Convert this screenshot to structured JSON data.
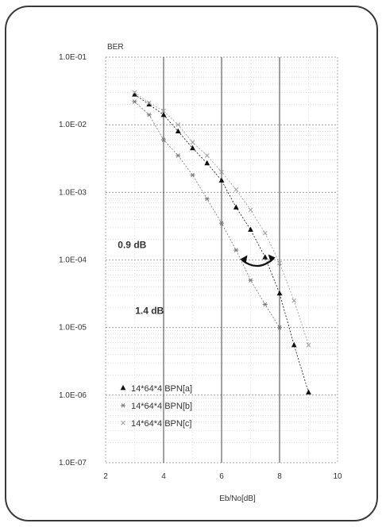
{
  "chart_data": {
    "type": "scatter",
    "ylabel": "BER",
    "xlabel": "Eb/No[dB]",
    "x_ticks": [
      2,
      4,
      6,
      8,
      10
    ],
    "x_tick_labels": [
      "2",
      "4",
      "6",
      "8",
      "10"
    ],
    "xlim": [
      2,
      10
    ],
    "y_scale": "log",
    "ylim": [
      1e-07,
      0.1
    ],
    "y_ticks": [
      0.1,
      0.01,
      0.001,
      0.0001,
      1e-05,
      1e-06,
      1e-07
    ],
    "y_tick_labels": [
      "1.0E-01",
      "1.0E-02",
      "1.0E-03",
      "1.0E-04",
      "1.0E-05",
      "1.0E-06",
      "1.0E-07"
    ],
    "grid": true,
    "legend_position": "lower-left",
    "series": [
      {
        "name": "14*64*4 BPN[a]",
        "marker": "triangle",
        "color": "#111111",
        "x": [
          3.0,
          3.5,
          4.0,
          4.5,
          5.0,
          5.5,
          6.0,
          6.5,
          7.0,
          7.5,
          8.0,
          8.5,
          9.0
        ],
        "y": [
          0.028,
          0.02,
          0.014,
          0.008,
          0.0045,
          0.0027,
          0.0015,
          0.0006,
          0.00028,
          0.00011,
          3.2e-05,
          5.5e-06,
          1.1e-06
        ]
      },
      {
        "name": "14*64*4 BPN[b]",
        "marker": "asterisk",
        "color": "#777777",
        "x": [
          3.0,
          3.5,
          4.0,
          4.5,
          5.0,
          5.5,
          6.0,
          6.5,
          7.0,
          7.5,
          8.0
        ],
        "y": [
          0.022,
          0.014,
          0.006,
          0.0035,
          0.0018,
          0.0008,
          0.00035,
          0.00014,
          5e-05,
          2.2e-05,
          1e-05
        ]
      },
      {
        "name": "14*64*4 BPN[c]",
        "marker": "x",
        "color": "#999999",
        "x": [
          3.0,
          3.5,
          4.0,
          4.5,
          5.0,
          5.5,
          6.0,
          6.5,
          7.0,
          7.5,
          8.0,
          8.5,
          9.0
        ],
        "y": [
          0.03,
          0.021,
          0.016,
          0.01,
          0.0055,
          0.0035,
          0.002,
          0.0011,
          0.00055,
          0.00025,
          9e-05,
          2.5e-05,
          5.5e-06
        ]
      }
    ],
    "annotations": [
      {
        "text": "0.9 dB",
        "x": 2.2,
        "y": 0.00015
      },
      {
        "text": "1.4 dB",
        "x": 2.8,
        "y": 1.6e-05
      }
    ]
  }
}
